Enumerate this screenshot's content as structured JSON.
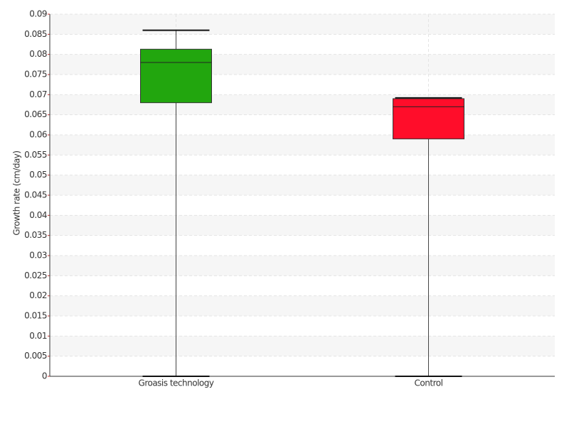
{
  "chart_data": {
    "type": "box",
    "y_label": "Growth rate (cm/day)",
    "categories": [
      "Groasis technology",
      "Control"
    ],
    "min": [
      0,
      0
    ],
    "q1": [
      0.068,
      0.059
    ],
    "median": [
      0.078,
      0.067
    ],
    "q3": [
      0.0813,
      0.069
    ],
    "max": [
      0.086,
      0.0692
    ],
    "colors": [
      "#22a60e",
      "#ff0d2a"
    ],
    "ylim": [
      0,
      0.09
    ],
    "yticks": [
      0,
      0.005,
      0.01,
      0.015,
      0.02,
      0.025,
      0.03,
      0.035,
      0.04,
      0.045,
      0.05,
      0.055,
      0.06,
      0.065,
      0.07,
      0.075,
      0.08,
      0.085,
      0.09
    ],
    "grid": true
  }
}
